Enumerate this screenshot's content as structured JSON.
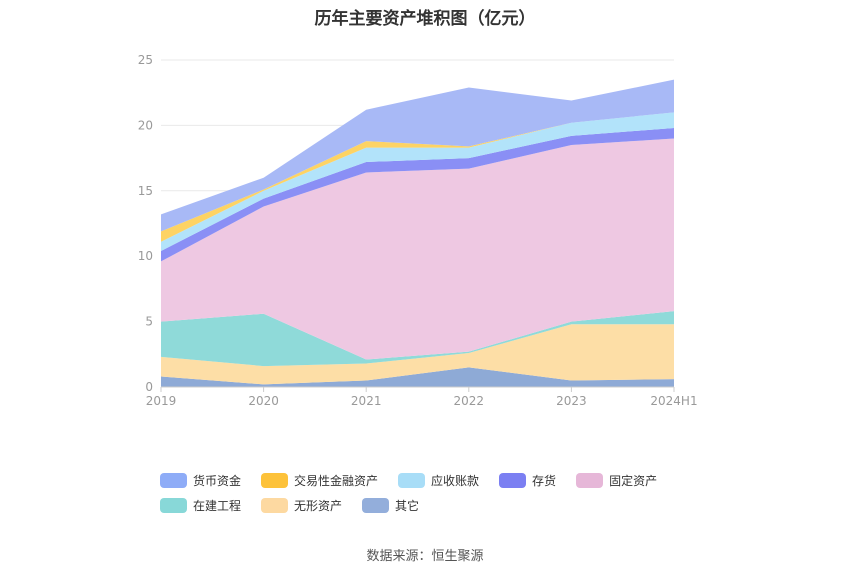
{
  "chart_data": {
    "type": "area",
    "stacked": true,
    "title": "历年主要资产堆积图（亿元）",
    "categories": [
      "2019",
      "2020",
      "2021",
      "2022",
      "2023",
      "2024H1"
    ],
    "ylim": [
      0,
      25
    ],
    "yticks": [
      0,
      5,
      10,
      15,
      20,
      25
    ],
    "grid": true,
    "legend_position": "bottom",
    "series": [
      {
        "name": "其它",
        "color": "#8eaad6",
        "values": [
          0.8,
          0.2,
          0.5,
          1.5,
          0.5,
          0.6
        ]
      },
      {
        "name": "无形资产",
        "color": "#fddea6",
        "values": [
          1.5,
          1.4,
          1.3,
          1.1,
          4.3,
          4.2
        ]
      },
      {
        "name": "在建工程",
        "color": "#8fdad9",
        "values": [
          2.7,
          4.0,
          0.3,
          0.1,
          0.2,
          1.0
        ]
      },
      {
        "name": "固定资产",
        "color": "#eec8e2",
        "values": [
          4.6,
          8.2,
          14.3,
          14.0,
          13.5,
          13.2
        ]
      },
      {
        "name": "存货",
        "color": "#8a8ff5",
        "values": [
          0.8,
          0.6,
          0.8,
          0.8,
          0.7,
          0.8
        ]
      },
      {
        "name": "应收账款",
        "color": "#b2e3fa",
        "values": [
          0.7,
          0.6,
          1.1,
          0.8,
          1.0,
          1.2
        ]
      },
      {
        "name": "交易性金融资产",
        "color": "#fdd364",
        "values": [
          0.8,
          0.1,
          0.5,
          0.1,
          0.0,
          0.0
        ]
      },
      {
        "name": "货币资金",
        "color": "#a8b9f6",
        "values": [
          1.3,
          0.9,
          2.4,
          4.5,
          1.7,
          2.5
        ]
      }
    ]
  },
  "legend": [
    {
      "name": "货币资金",
      "color": "#8eacf7"
    },
    {
      "name": "交易性金融资产",
      "color": "#fdc23a"
    },
    {
      "name": "应收账款",
      "color": "#a8ddf7"
    },
    {
      "name": "存货",
      "color": "#7b7ff2"
    },
    {
      "name": "固定资产",
      "color": "#e6b7d8"
    },
    {
      "name": "在建工程",
      "color": "#88d8d8"
    },
    {
      "name": "无形资产",
      "color": "#fdd9a1"
    },
    {
      "name": "其它",
      "color": "#93aedb"
    }
  ],
  "source": "数据来源：恒生聚源"
}
